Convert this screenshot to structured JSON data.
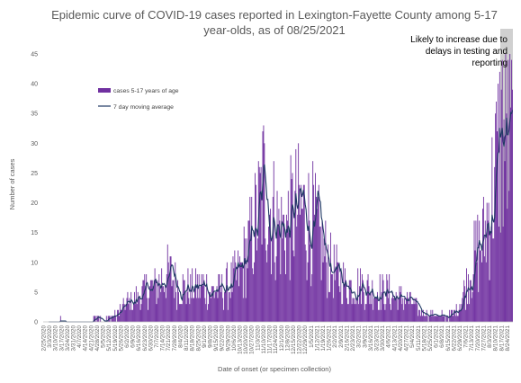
{
  "chart_data": {
    "type": "bar",
    "title_lines": [
      "Epidemic curve of COVID-19 cases reported in Lexington-Fayette County among 5-17",
      "year-olds, as of 08/25/2021"
    ],
    "xlabel": "Date of onset (or specimen collection)",
    "ylabel": "Number of cases",
    "ylim": [
      0,
      45
    ],
    "yticks": [
      0,
      5,
      10,
      15,
      20,
      25,
      30,
      35,
      40,
      45
    ],
    "grid": false,
    "legend_position": "top-left",
    "colors": {
      "bars": "#7030a0",
      "line": "#1f3864",
      "shade": "#d0d0d0"
    },
    "series": [
      {
        "name": "cases 5-17 years of age",
        "kind": "bar"
      },
      {
        "name": "7 day moving average",
        "kind": "line"
      }
    ],
    "x_tick_labels": [
      "2/25/2020",
      "3/3/2020",
      "3/10/2020",
      "3/17/2020",
      "3/24/2020",
      "3/31/2020",
      "4/7/2020",
      "4/14/2020",
      "4/21/2020",
      "4/28/2020",
      "5/5/2020",
      "5/12/2020",
      "5/19/2020",
      "5/26/2020",
      "6/2/2020",
      "6/9/2020",
      "6/16/2020",
      "6/23/2020",
      "6/30/2020",
      "7/7/2020",
      "7/14/2020",
      "7/21/2020",
      "7/28/2020",
      "8/4/2020",
      "8/11/2020",
      "8/18/2020",
      "8/25/2020",
      "9/1/2020",
      "9/8/2020",
      "9/15/2020",
      "9/22/2020",
      "9/29/2020",
      "10/6/2020",
      "10/13/2020",
      "10/20/2020",
      "10/27/2020",
      "11/3/2020",
      "11/10/2020",
      "11/17/2020",
      "11/24/2020",
      "12/1/2020",
      "12/8/2020",
      "12/15/2020",
      "12/22/2020",
      "12/29/2020",
      "1/5/2021",
      "1/12/2021",
      "1/19/2021",
      "1/26/2021",
      "2/2/2021",
      "2/9/2021",
      "2/16/2021",
      "2/23/2021",
      "3/2/2021",
      "3/9/2021",
      "3/16/2021",
      "3/23/2021",
      "3/30/2021",
      "4/6/2021",
      "4/13/2021",
      "4/20/2021",
      "4/27/2021",
      "5/4/2021",
      "5/11/2021",
      "5/18/2021",
      "5/25/2021",
      "6/1/2021",
      "6/8/2021",
      "6/15/2021",
      "6/22/2021",
      "6/29/2021",
      "7/6/2021",
      "7/13/2021",
      "7/20/2021",
      "7/27/2021",
      "8/3/2021",
      "8/10/2021",
      "8/17/2021",
      "8/24/2021"
    ],
    "annotation": [
      "Likely to increase due to",
      "delays in testing and",
      "reporting"
    ],
    "shaded_range": [
      "8/14/2021",
      "8/25/2021"
    ],
    "weekly_shape": [
      0,
      0,
      0,
      0.3,
      0,
      0,
      0.3,
      0,
      0.3,
      0.3,
      0.3,
      0.5,
      1,
      2,
      3,
      3.5,
      4,
      5,
      5.5,
      6,
      7,
      8,
      7,
      6,
      5.5,
      5.5,
      6,
      6,
      5,
      5,
      5.5,
      6,
      7,
      8,
      11,
      14,
      18,
      23,
      19,
      17,
      15,
      16,
      18,
      19,
      18,
      17,
      15,
      12,
      10,
      8,
      7,
      6,
      6,
      6,
      6,
      5,
      5,
      5,
      5,
      4,
      4,
      4,
      3,
      2,
      1.5,
      1,
      1,
      1,
      1,
      1.5,
      3,
      6,
      9,
      12,
      14,
      19,
      25,
      32,
      30
    ]
  }
}
